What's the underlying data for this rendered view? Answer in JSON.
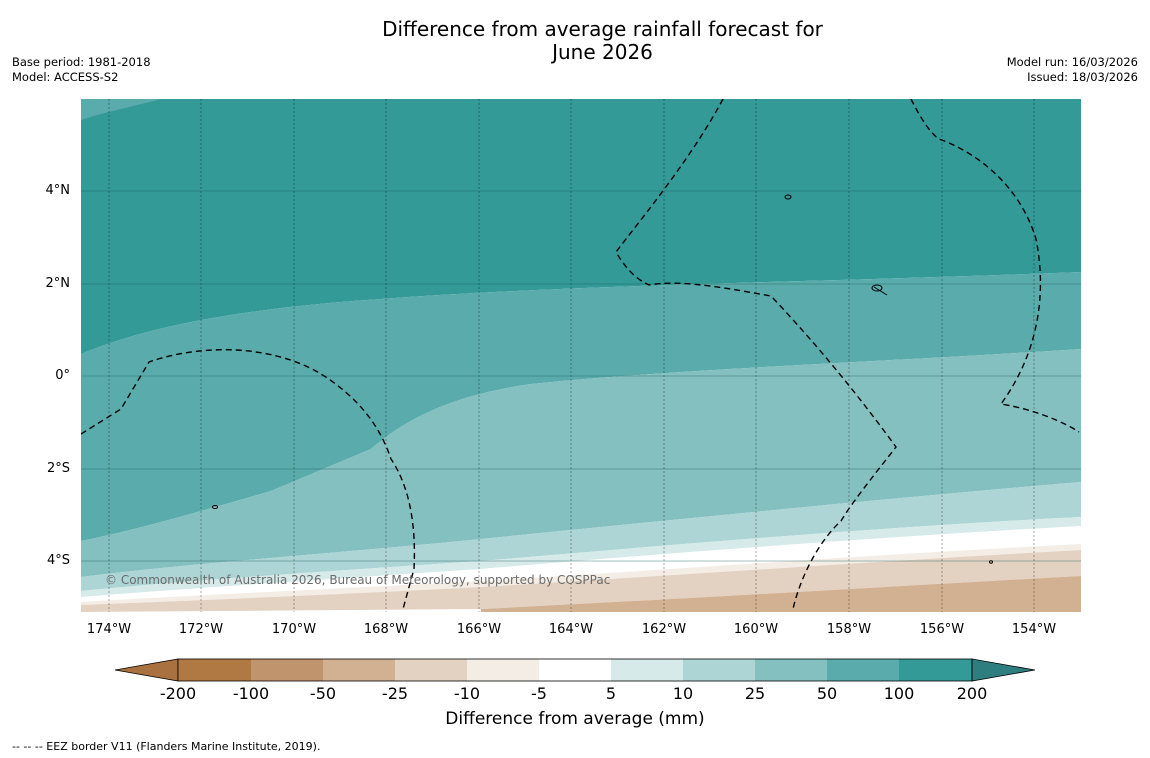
{
  "title": {
    "line1": "Difference from average rainfall forecast for",
    "line2": "June 2026"
  },
  "meta_left": {
    "base_period": "Base period: 1981-2018",
    "model": "Model: ACCESS-S2"
  },
  "meta_right": {
    "model_run": "Model run: 16/03/2026",
    "issued": "Issued: 18/03/2026"
  },
  "map": {
    "latitude_labels": [
      "4°N",
      "2°N",
      "0°",
      "2°S",
      "4°S"
    ],
    "longitude_labels": [
      "174°W",
      "172°W",
      "170°W",
      "168°W",
      "166°W",
      "164°W",
      "162°W",
      "160°W",
      "158°W",
      "156°W",
      "154°W"
    ],
    "copyright": "© Commonwealth of Australia 2026, Bureau of Meteorology, supported by COSPPac",
    "colors": {
      "100_200": "#339a97",
      "50_100": "#5aabab",
      "25_50": "#85c0c0",
      "10_25": "#aed5d6",
      "5_10": "#d6eae9",
      "-5_5": "#ffffff",
      "-10_-5": "#f3ede6",
      "-25_-10": "#e3d1c1",
      "-50_-25": "#d2b192",
      "-100_-50": "#c0946c"
    }
  },
  "colorbar": {
    "ticks": [
      "-200",
      "-100",
      "-50",
      "-25",
      "-10",
      "-5",
      "5",
      "10",
      "25",
      "50",
      "100",
      "200"
    ],
    "colors": [
      "#a8713f",
      "#b07944",
      "#c0946c",
      "#d2b192",
      "#e3d1c1",
      "#f3ede6",
      "#ffffff",
      "#d6eae9",
      "#aed5d6",
      "#85c0c0",
      "#5aabab",
      "#339a97",
      "#2f7e7f"
    ],
    "title": "Difference from average (mm)"
  },
  "footnote": "--  --  -- EEZ border V11 (Flanders Marine Institute, 2019)."
}
